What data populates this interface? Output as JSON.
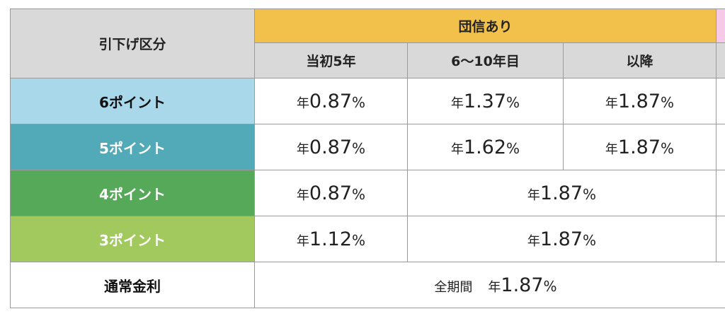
{
  "header": {
    "category_label": "引下げ区分",
    "group_label": "団信あり",
    "sub_columns": [
      "当初5年",
      "6～10年目",
      "以降"
    ]
  },
  "rate_prefix": "年",
  "rate_suffix": "%",
  "rows": [
    {
      "label": "6ポイント",
      "rates": [
        "0.87",
        "1.37",
        "1.87"
      ]
    },
    {
      "label": "5ポイント",
      "rates": [
        "0.87",
        "1.62",
        "1.87"
      ]
    },
    {
      "label": "4ポイント",
      "rates": [
        "0.87",
        "1.87"
      ]
    },
    {
      "label": "3ポイント",
      "rates": [
        "1.12",
        "1.87"
      ]
    }
  ],
  "normal_row": {
    "label": "通常金利",
    "period_label": "全期間",
    "rate": "1.87"
  },
  "colors": {
    "group_header": "#f2c14b",
    "pink_header": "#f7c9e9",
    "cat_6": "#a8d8ea",
    "cat_5": "#52a9b7",
    "cat_4": "#55a959",
    "cat_3": "#a1c95e"
  }
}
